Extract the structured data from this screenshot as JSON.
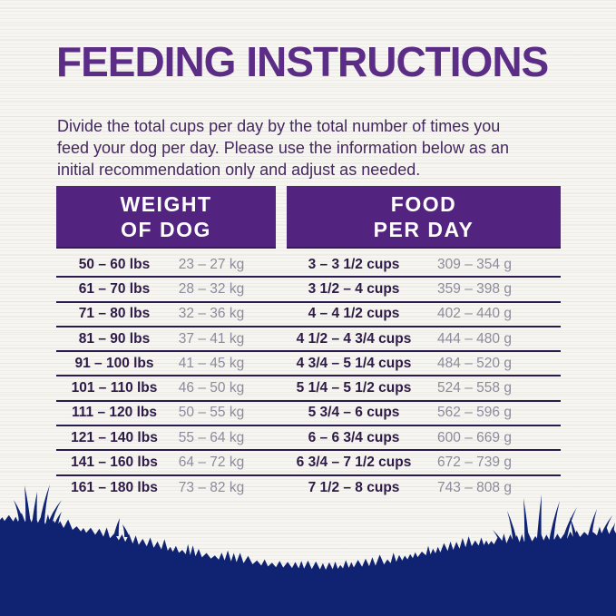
{
  "title": "FEEDING INSTRUCTIONS",
  "intro": {
    "lines": [
      "Divide the total cups per day by the total number of times you",
      "feed your dog per day. Please use the information below as an",
      "initial recommendation only and adjust as needed."
    ]
  },
  "table": {
    "headers": [
      {
        "line1": "WEIGHT",
        "line2": "OF DOG"
      },
      {
        "line1": "FOOD",
        "line2": "PER DAY"
      }
    ],
    "rows": [
      {
        "lbs": "50 – 60 lbs",
        "kg": "23 – 27 kg",
        "cups": "3 – 3 1/2 cups",
        "grams": "309 – 354 g"
      },
      {
        "lbs": "61 – 70 lbs",
        "kg": "28 – 32 kg",
        "cups": "3 1/2 – 4 cups",
        "grams": "359 – 398 g"
      },
      {
        "lbs": "71 – 80 lbs",
        "kg": "32 – 36 kg",
        "cups": "4 – 4 1/2 cups",
        "grams": "402 – 440 g"
      },
      {
        "lbs": "81 – 90 lbs",
        "kg": "37 – 41 kg",
        "cups": "4 1/2 – 4 3/4 cups",
        "grams": "444 – 480 g"
      },
      {
        "lbs": "91 – 100 lbs",
        "kg": "41 – 45 kg",
        "cups": "4 3/4 – 5 1/4 cups",
        "grams": "484 – 520 g"
      },
      {
        "lbs": "101 – 110 lbs",
        "kg": "46 – 50 kg",
        "cups": "5 1/4 – 5 1/2 cups",
        "grams": "524 – 558 g"
      },
      {
        "lbs": "111 – 120 lbs",
        "kg": "50 – 55 kg",
        "cups": "5 3/4 – 6 cups",
        "grams": "562 – 596 g"
      },
      {
        "lbs": "121 – 140 lbs",
        "kg": "55 – 64 kg",
        "cups": "6 – 6 3/4 cups",
        "grams": "600 – 669 g"
      },
      {
        "lbs": "141 – 160 lbs",
        "kg": "64 – 72 kg",
        "cups": "6 3/4 – 7 1/2 cups",
        "grams": "672 – 739 g"
      },
      {
        "lbs": "161 – 180 lbs",
        "kg": "73 – 82 kg",
        "cups": "7 1/2 – 8 cups",
        "grams": "743 – 808 g"
      }
    ]
  },
  "colors": {
    "title_purple": "#5b2d87",
    "header_purple": "#53247f",
    "header_text": "#ffffff",
    "text_dark_purple": "#2d1a46",
    "text_gray_purple": "#8f8a9b",
    "divider": "#2b1a4e",
    "grass_navy": "#0f2372",
    "background": "#f6f5f1"
  }
}
